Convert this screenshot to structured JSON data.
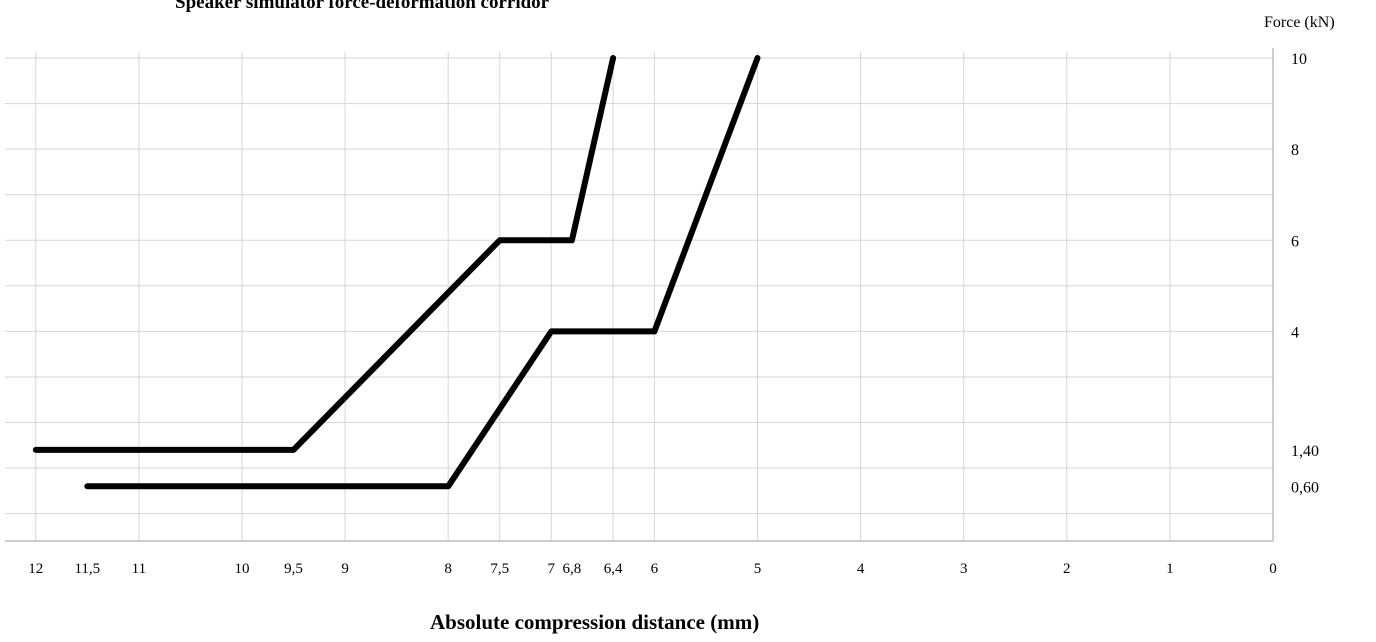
{
  "chart_data": {
    "type": "line",
    "title": "Speaker simulator force-deformation corridor",
    "xlabel": "Absolute compression distance (mm)",
    "ylabel": "Force (kN)",
    "x_axis_reversed": true,
    "xlim": [
      12.25,
      0
    ],
    "ylim": [
      -0.6,
      10
    ],
    "grid": true,
    "x_ticks": [
      {
        "v": 12,
        "label": "12"
      },
      {
        "v": 11.5,
        "label": "11,5"
      },
      {
        "v": 11,
        "label": "11"
      },
      {
        "v": 10,
        "label": "10"
      },
      {
        "v": 9.5,
        "label": "9,5"
      },
      {
        "v": 9,
        "label": "9"
      },
      {
        "v": 8,
        "label": "8"
      },
      {
        "v": 7.5,
        "label": "7,5"
      },
      {
        "v": 7,
        "label": "7"
      },
      {
        "v": 6.8,
        "label": "6,8"
      },
      {
        "v": 6.4,
        "label": "6,4"
      },
      {
        "v": 6,
        "label": "6"
      },
      {
        "v": 5,
        "label": "5"
      },
      {
        "v": 4,
        "label": "4"
      },
      {
        "v": 3,
        "label": "3"
      },
      {
        "v": 2,
        "label": "2"
      },
      {
        "v": 1,
        "label": "1"
      },
      {
        "v": 0,
        "label": "0"
      }
    ],
    "y_ticks": [
      {
        "v": 10,
        "label": "10"
      },
      {
        "v": 8,
        "label": "8"
      },
      {
        "v": 6,
        "label": "6"
      },
      {
        "v": 4,
        "label": "4"
      },
      {
        "v": 1.4,
        "label": "1,40"
      },
      {
        "v": 0.6,
        "label": "0,60"
      }
    ],
    "series": [
      {
        "x": [
          12,
          9.5,
          7.5,
          6.8,
          6.4
        ],
        "y": [
          1.4,
          1.4,
          6,
          6,
          10
        ]
      },
      {
        "x": [
          11.5,
          8,
          7,
          6,
          5
        ],
        "y": [
          0.6,
          0.6,
          4,
          4,
          10
        ]
      }
    ],
    "colors": {
      "line": "#000000",
      "grid": "#d6d6d6",
      "axis": "#bdbdbd"
    }
  }
}
